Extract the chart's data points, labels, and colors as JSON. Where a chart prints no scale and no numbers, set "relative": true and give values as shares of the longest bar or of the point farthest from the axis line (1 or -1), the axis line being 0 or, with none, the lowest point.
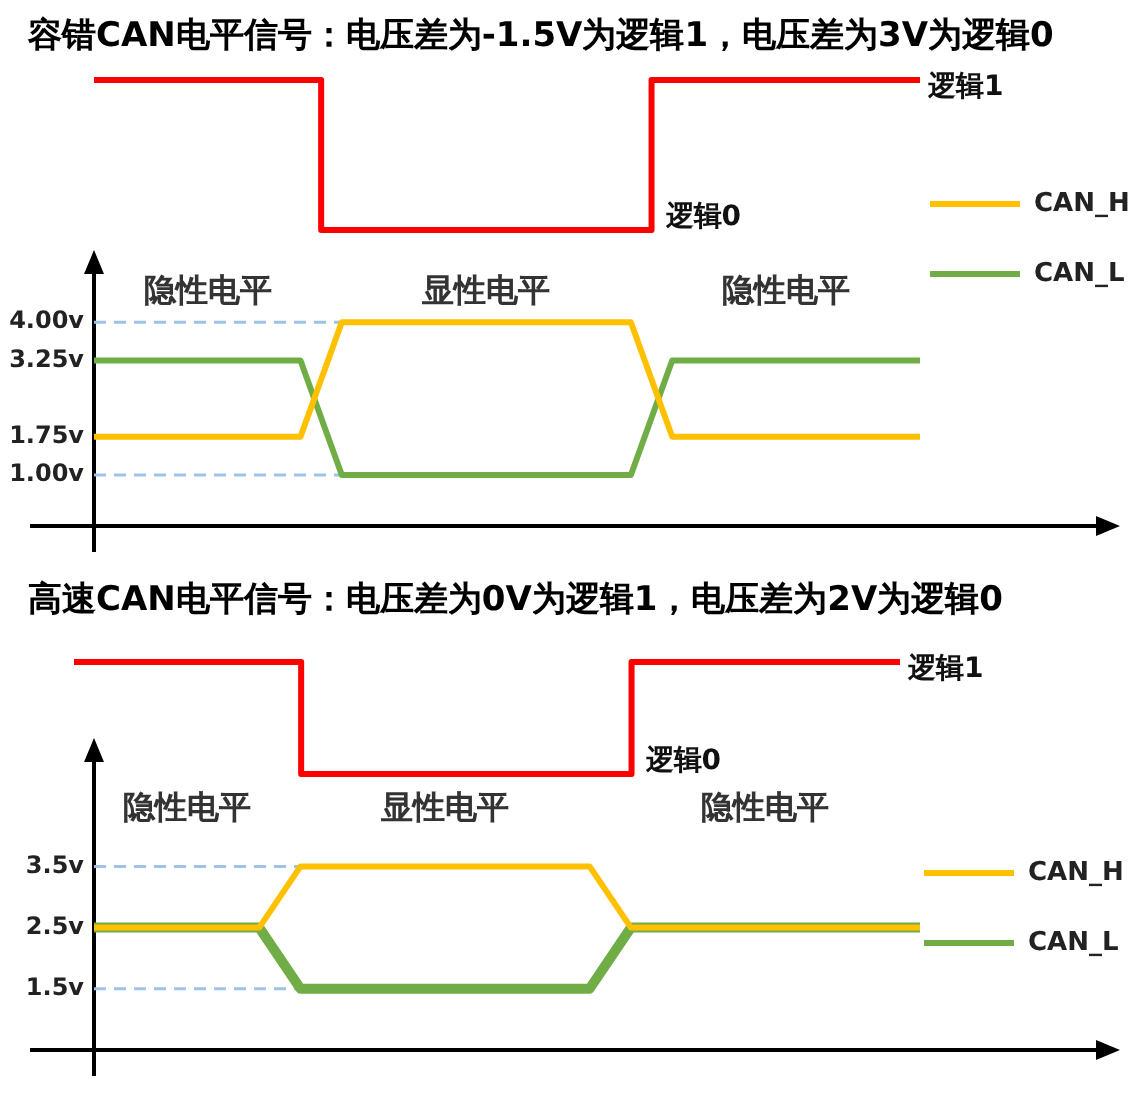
{
  "chart_data": [
    {
      "type": "step",
      "title": "容错CAN电平信号：电压差为-1.5V为逻辑1，电压差为3V为逻辑0",
      "relative": true,
      "tick_labels": false,
      "categories": [
        null,
        null,
        null,
        null,
        null,
        null,
        null,
        null,
        null,
        null,
        null,
        null,
        null,
        null,
        null,
        null,
        null,
        null,
        null,
        null,
        null
      ],
      "series": [
        {
          "color": "#ff0000",
          "values": [
            1,
            1,
            1,
            1,
            1,
            1,
            0,
            0,
            0,
            0,
            0,
            0,
            0,
            0,
            1,
            1,
            1,
            1,
            1,
            1,
            1
          ]
        }
      ],
      "annotations": [
        "逻辑1",
        "逻辑0"
      ]
    },
    {
      "type": "line",
      "categories": [
        null,
        null,
        null,
        null,
        null,
        null,
        null,
        null,
        null,
        null,
        null,
        null,
        null,
        null,
        null,
        null,
        null,
        null,
        null,
        null,
        null
      ],
      "series": [
        {
          "name": "CAN_H",
          "color": "#ffc000",
          "values": [
            1.75,
            1.75,
            1.75,
            1.75,
            1.75,
            1.75,
            4,
            4,
            4,
            4,
            4,
            4,
            4,
            4,
            1.75,
            1.75,
            1.75,
            1.75,
            1.75,
            1.75,
            1.75
          ]
        },
        {
          "name": "CAN_L",
          "color": "#70ad47",
          "values": [
            3.25,
            3.25,
            3.25,
            3.25,
            3.25,
            3.25,
            1,
            1,
            1,
            1,
            1,
            1,
            1,
            1,
            3.25,
            3.25,
            3.25,
            3.25,
            3.25,
            3.25,
            3.25
          ]
        }
      ],
      "ylim": [
        0,
        5.3
      ],
      "yticks": [
        {
          "value": 1,
          "label": "1.00v"
        },
        {
          "value": 1.75,
          "label": "1.75v"
        },
        {
          "value": 3.25,
          "label": "3.25v"
        },
        {
          "value": 4,
          "label": "4.00v"
        }
      ],
      "tick_labels": "y",
      "ref_lines": [
        {
          "axis": "y",
          "value": 4,
          "color": "#9dc3e6",
          "line_style": "dashed"
        },
        {
          "axis": "y",
          "value": 1,
          "color": "#9dc3e6",
          "line_style": "dashed"
        }
      ],
      "annotations": [
        "隐性电平",
        "显性电平",
        "隐性电平"
      ],
      "legend": "top right"
    },
    {
      "type": "step",
      "title": "高速CAN电平信号：电压差为0V为逻辑1，电压差为2V为逻辑0",
      "relative": true,
      "tick_labels": false,
      "categories": [
        null,
        null,
        null,
        null,
        null,
        null,
        null,
        null,
        null,
        null,
        null,
        null,
        null,
        null,
        null,
        null,
        null,
        null,
        null,
        null,
        null
      ],
      "series": [
        {
          "color": "#ff0000",
          "values": [
            1,
            1,
            1,
            1,
            1,
            1,
            0,
            0,
            0,
            0,
            0,
            0,
            0,
            0,
            1,
            1,
            1,
            1,
            1,
            1,
            1
          ]
        }
      ],
      "annotations": [
        "逻辑1",
        "逻辑0"
      ]
    },
    {
      "type": "line",
      "categories": [
        null,
        null,
        null,
        null,
        null,
        null,
        null,
        null,
        null,
        null,
        null,
        null,
        null,
        null,
        null,
        null,
        null,
        null,
        null,
        null,
        null
      ],
      "series": [
        {
          "name": "CAN_H",
          "color": "#ffc000",
          "values": [
            2.5,
            2.5,
            2.5,
            2.5,
            2.5,
            3.5,
            3.5,
            3.5,
            3.5,
            3.5,
            3.5,
            3.5,
            3.5,
            2.5,
            2.5,
            2.5,
            2.5,
            2.5,
            2.5,
            2.5,
            2.5
          ]
        },
        {
          "name": "CAN_L",
          "color": "#70ad47",
          "values": [
            2.5,
            2.5,
            2.5,
            2.5,
            2.5,
            1.5,
            1.5,
            1.5,
            1.5,
            1.5,
            1.5,
            1.5,
            1.5,
            2.5,
            2.5,
            2.5,
            2.5,
            2.5,
            2.5,
            2.5,
            2.5
          ]
        }
      ],
      "ylim": [
        0.5,
        5.5
      ],
      "yticks": [
        {
          "value": 1.5,
          "label": "1.5v"
        },
        {
          "value": 2.5,
          "label": "2.5v"
        },
        {
          "value": 3.5,
          "label": "3.5v"
        }
      ],
      "tick_labels": "y",
      "ref_lines": [
        {
          "axis": "y",
          "value": 3.5,
          "color": "#9dc3e6",
          "line_style": "dashed"
        },
        {
          "axis": "y",
          "value": 1.5,
          "color": "#9dc3e6",
          "line_style": "dashed"
        }
      ],
      "annotations": [
        "隐性电平",
        "显性电平",
        "隐性电平"
      ],
      "legend": "right"
    }
  ]
}
